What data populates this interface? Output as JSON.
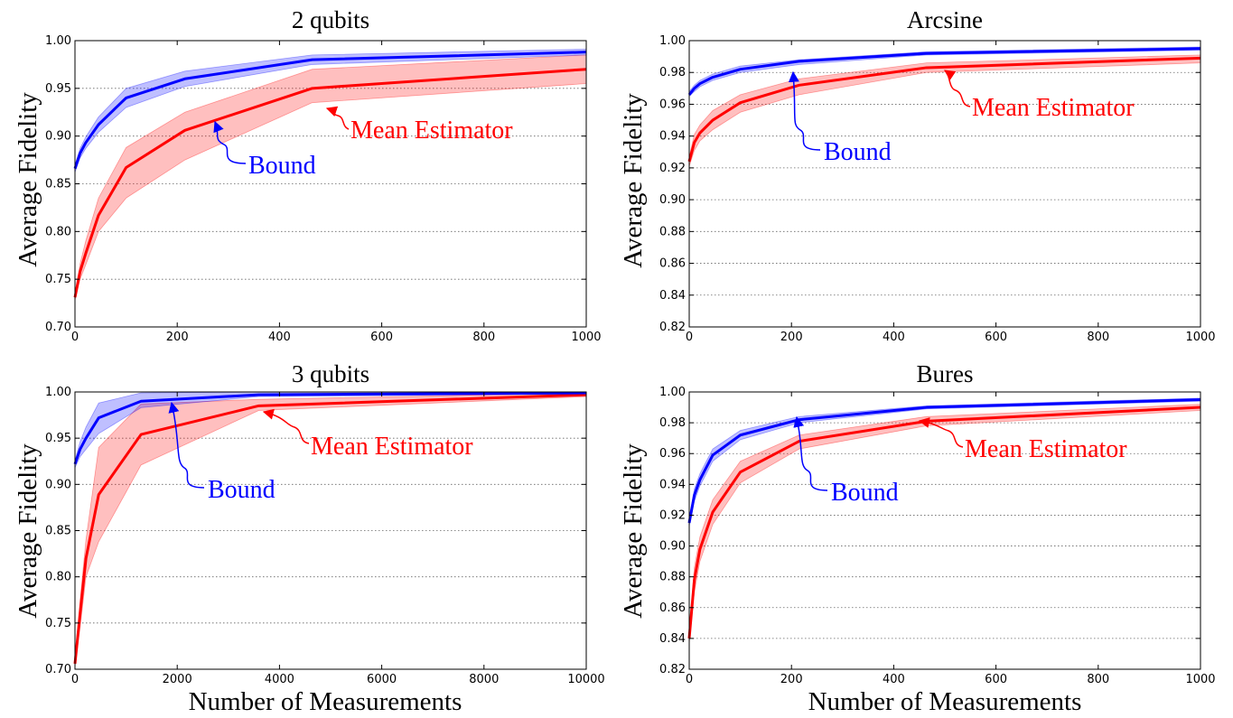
{
  "chart_data": [
    {
      "type": "line",
      "title": "2 qubits",
      "xlabel": "",
      "ylabel": "Average Fidelity",
      "xlim": [
        0,
        1000
      ],
      "ylim": [
        0.7,
        1.0
      ],
      "xticks": [
        "0",
        "200",
        "400",
        "600",
        "800",
        "1000"
      ],
      "yticks": [
        "0.70",
        "0.75",
        "0.80",
        "0.85",
        "0.90",
        "0.95",
        "1.00"
      ],
      "grid": "horizontal dotted",
      "series": [
        {
          "name": "Bound",
          "color": "#0000ff",
          "x": [
            0,
            10,
            21,
            46,
            100,
            215,
            464,
            1000
          ],
          "y": [
            0.866,
            0.882,
            0.893,
            0.912,
            0.94,
            0.96,
            0.98,
            0.988
          ],
          "lower": [
            0.862,
            0.877,
            0.887,
            0.904,
            0.93,
            0.952,
            0.975,
            0.985
          ],
          "upper": [
            0.87,
            0.887,
            0.899,
            0.92,
            0.95,
            0.968,
            0.985,
            0.991
          ]
        },
        {
          "name": "Mean Estimator",
          "color": "#ff0000",
          "x": [
            0,
            10,
            21,
            46,
            100,
            215,
            464,
            1000
          ],
          "y": [
            0.731,
            0.758,
            0.777,
            0.817,
            0.867,
            0.906,
            0.95,
            0.97
          ],
          "lower": [
            0.728,
            0.75,
            0.765,
            0.8,
            0.835,
            0.875,
            0.935,
            0.955
          ],
          "upper": [
            0.735,
            0.766,
            0.79,
            0.835,
            0.888,
            0.925,
            0.97,
            0.985
          ]
        }
      ],
      "annotations": [
        {
          "text": "Bound",
          "color": "#0000ff",
          "target": [
            250,
            0.96
          ]
        },
        {
          "text": "Mean Estimator",
          "color": "#ff0000",
          "target": [
            470,
            0.95
          ]
        }
      ]
    },
    {
      "type": "line",
      "title": "Arcsine",
      "xlabel": "",
      "ylabel": "Average Fidelity",
      "xlim": [
        0,
        1000
      ],
      "ylim": [
        0.82,
        1.0
      ],
      "xticks": [
        "0",
        "200",
        "400",
        "600",
        "800",
        "1000"
      ],
      "yticks": [
        "0.82",
        "0.84",
        "0.86",
        "0.88",
        "0.90",
        "0.92",
        "0.94",
        "0.96",
        "0.98",
        "1.00"
      ],
      "grid": "horizontal dotted",
      "series": [
        {
          "name": "Bound",
          "color": "#0000ff",
          "x": [
            0,
            10,
            21,
            46,
            100,
            215,
            464,
            1000
          ],
          "y": [
            0.966,
            0.97,
            0.973,
            0.977,
            0.982,
            0.987,
            0.992,
            0.995
          ],
          "lower": [
            0.965,
            0.968,
            0.971,
            0.975,
            0.98,
            0.985,
            0.991,
            0.994
          ],
          "upper": [
            0.968,
            0.972,
            0.975,
            0.979,
            0.984,
            0.988,
            0.993,
            0.996
          ]
        },
        {
          "name": "Mean Estimator",
          "color": "#ff0000",
          "x": [
            0,
            10,
            21,
            46,
            100,
            215,
            464,
            1000
          ],
          "y": [
            0.924,
            0.936,
            0.942,
            0.95,
            0.961,
            0.972,
            0.983,
            0.989
          ],
          "lower": [
            0.921,
            0.931,
            0.937,
            0.944,
            0.955,
            0.966,
            0.98,
            0.986
          ],
          "upper": [
            0.927,
            0.941,
            0.947,
            0.956,
            0.966,
            0.976,
            0.986,
            0.991
          ]
        }
      ],
      "annotations": [
        {
          "text": "Bound",
          "color": "#0000ff",
          "target": [
            190,
            0.987
          ]
        },
        {
          "text": "Mean Estimator",
          "color": "#ff0000",
          "target": [
            480,
            0.983
          ]
        }
      ]
    },
    {
      "type": "line",
      "title": "3 qubits",
      "xlabel": "Number of Measurements",
      "ylabel": "Average Fidelity",
      "xlim": [
        0,
        10000
      ],
      "ylim": [
        0.7,
        1.0
      ],
      "xticks": [
        "0",
        "2000",
        "4000",
        "6000",
        "8000",
        "10000"
      ],
      "yticks": [
        "0.70",
        "0.75",
        "0.80",
        "0.85",
        "0.90",
        "0.95",
        "1.00"
      ],
      "grid": "horizontal dotted",
      "series": [
        {
          "name": "Bound",
          "color": "#0000ff",
          "x": [
            0,
            100,
            215,
            464,
            1292,
            3594,
            10000
          ],
          "y": [
            0.922,
            0.938,
            0.95,
            0.972,
            0.99,
            0.997,
            0.999
          ],
          "lower": [
            0.918,
            0.93,
            0.938,
            0.955,
            0.983,
            0.995,
            0.998
          ],
          "upper": [
            0.926,
            0.946,
            0.962,
            0.988,
            0.999,
            1.0,
            1.0
          ]
        },
        {
          "name": "Mean Estimator",
          "color": "#ff0000",
          "x": [
            0,
            100,
            215,
            464,
            1292,
            3594,
            10000
          ],
          "y": [
            0.706,
            0.76,
            0.82,
            0.889,
            0.954,
            0.985,
            0.997
          ],
          "lower": [
            0.703,
            0.745,
            0.8,
            0.838,
            0.921,
            0.98,
            0.995
          ],
          "upper": [
            0.71,
            0.775,
            0.84,
            0.94,
            0.987,
            0.992,
            0.999
          ]
        }
      ],
      "annotations": [
        {
          "text": "Bound",
          "color": "#0000ff",
          "target": [
            1800,
            0.992
          ]
        },
        {
          "text": "Mean Estimator",
          "color": "#ff0000",
          "target": [
            3600,
            0.985
          ]
        }
      ]
    },
    {
      "type": "line",
      "title": "Bures",
      "xlabel": "Number of Measurements",
      "ylabel": "Average Fidelity",
      "xlim": [
        0,
        1000
      ],
      "ylim": [
        0.82,
        1.0
      ],
      "xticks": [
        "0",
        "200",
        "400",
        "600",
        "800",
        "1000"
      ],
      "yticks": [
        "0.82",
        "0.84",
        "0.86",
        "0.88",
        "0.90",
        "0.92",
        "0.94",
        "0.96",
        "0.98",
        "1.00"
      ],
      "grid": "horizontal dotted",
      "series": [
        {
          "name": "Bound",
          "color": "#0000ff",
          "x": [
            0,
            10,
            21,
            46,
            100,
            215,
            464,
            1000
          ],
          "y": [
            0.915,
            0.933,
            0.943,
            0.959,
            0.972,
            0.982,
            0.99,
            0.995
          ],
          "lower": [
            0.913,
            0.929,
            0.939,
            0.955,
            0.969,
            0.98,
            0.989,
            0.994
          ],
          "upper": [
            0.917,
            0.937,
            0.947,
            0.963,
            0.975,
            0.984,
            0.991,
            0.996
          ]
        },
        {
          "name": "Mean Estimator",
          "color": "#ff0000",
          "x": [
            0,
            10,
            21,
            46,
            100,
            215,
            464,
            1000
          ],
          "y": [
            0.84,
            0.878,
            0.898,
            0.922,
            0.948,
            0.968,
            0.981,
            0.99
          ],
          "lower": [
            0.837,
            0.87,
            0.89,
            0.914,
            0.941,
            0.963,
            0.978,
            0.988
          ],
          "upper": [
            0.843,
            0.886,
            0.906,
            0.93,
            0.955,
            0.972,
            0.984,
            0.992
          ]
        }
      ],
      "annotations": [
        {
          "text": "Bound",
          "color": "#0000ff",
          "target": [
            210,
            0.982
          ]
        },
        {
          "text": "Mean Estimator",
          "color": "#ff0000",
          "target": [
            470,
            0.981
          ]
        }
      ]
    }
  ]
}
